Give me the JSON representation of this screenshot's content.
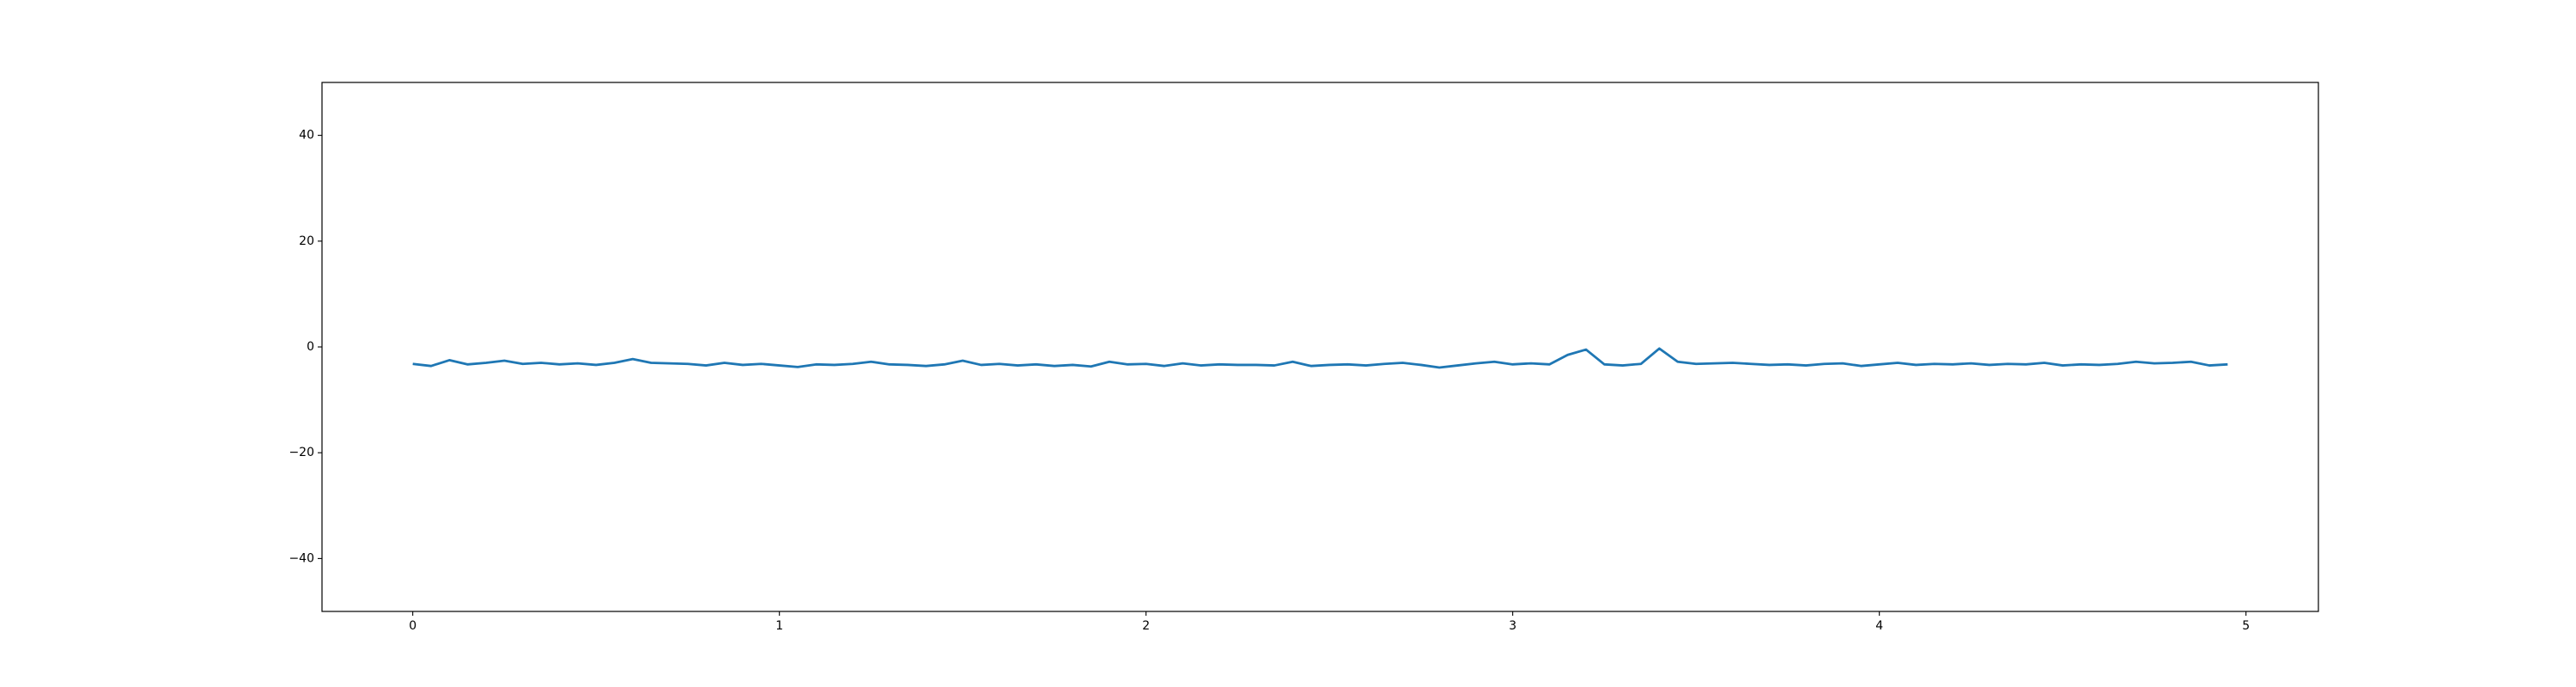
{
  "chart_data": {
    "type": "line",
    "x": [
      0,
      0.05,
      0.1,
      0.15,
      0.2,
      0.25,
      0.3,
      0.35,
      0.4,
      0.45,
      0.5,
      0.55,
      0.6,
      0.65,
      0.7,
      0.75,
      0.8,
      0.85,
      0.9,
      0.95,
      1,
      1.05,
      1.1,
      1.15,
      1.2,
      1.25,
      1.3,
      1.35,
      1.4,
      1.45,
      1.5,
      1.55,
      1.6,
      1.65,
      1.7,
      1.75,
      1.8,
      1.85,
      1.9,
      1.95,
      2,
      2.05,
      2.1,
      2.15,
      2.2,
      2.25,
      2.3,
      2.35,
      2.4,
      2.45,
      2.5,
      2.55,
      2.6,
      2.65,
      2.7,
      2.75,
      2.8,
      2.85,
      2.9,
      2.95,
      3,
      3.05,
      3.1,
      3.15,
      3.2,
      3.25,
      3.3,
      3.35,
      3.4,
      3.45,
      3.5,
      3.55,
      3.6,
      3.65,
      3.7,
      3.75,
      3.8,
      3.85,
      3.9,
      3.95,
      4,
      4.05,
      4.1,
      4.15,
      4.2,
      4.25,
      4.3,
      4.35,
      4.4,
      4.45,
      4.5,
      4.55,
      4.6,
      4.65,
      4.7,
      4.75,
      4.8,
      4.85,
      4.9,
      4.95
    ],
    "series": [
      {
        "color": "#1f77b4",
        "values": [
          -3.2,
          -3.6,
          -2.5,
          -3.3,
          -3.0,
          -2.6,
          -3.2,
          -3.0,
          -3.3,
          -3.1,
          -3.4,
          -3.0,
          -2.3,
          -3.0,
          -3.1,
          -3.2,
          -3.5,
          -3.0,
          -3.4,
          -3.2,
          -3.5,
          -3.8,
          -3.3,
          -3.4,
          -3.2,
          -2.8,
          -3.3,
          -3.4,
          -3.6,
          -3.3,
          -2.6,
          -3.4,
          -3.2,
          -3.5,
          -3.3,
          -3.6,
          -3.4,
          -3.7,
          -2.8,
          -3.3,
          -3.2,
          -3.6,
          -3.1,
          -3.5,
          -3.3,
          -3.4,
          -3.4,
          -3.5,
          -2.8,
          -3.6,
          -3.4,
          -3.3,
          -3.5,
          -3.2,
          -3.0,
          -3.4,
          -3.9,
          -3.5,
          -3.1,
          -2.8,
          -3.3,
          -3.1,
          -3.3,
          -1.5,
          -0.5,
          -3.3,
          -3.5,
          -3.2,
          -0.3,
          -2.8,
          -3.2,
          -3.1,
          -3.0,
          -3.2,
          -3.4,
          -3.3,
          -3.5,
          -3.2,
          -3.1,
          -3.6,
          -3.3,
          -3.0,
          -3.4,
          -3.2,
          -3.3,
          -3.1,
          -3.4,
          -3.2,
          -3.3,
          -3.0,
          -3.5,
          -3.3,
          -3.4,
          -3.2,
          -2.8,
          -3.1,
          -3.0,
          -2.8,
          -3.5,
          -3.3
        ]
      }
    ],
    "xlim": [
      -0.2475,
      5.1975
    ],
    "xticks": [
      0,
      1,
      2,
      3,
      4,
      5
    ],
    "ylim": [
      -50,
      50
    ],
    "yticks": [
      {
        "value": -40,
        "label": "−40"
      },
      {
        "value": -20,
        "label": "−20"
      },
      0,
      20,
      40
    ]
  }
}
